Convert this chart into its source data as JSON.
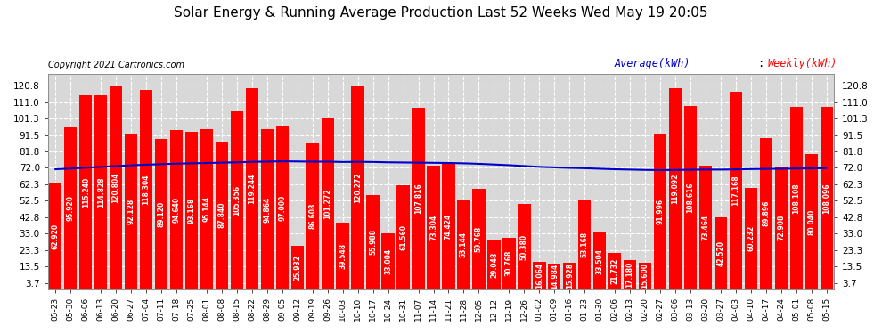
{
  "title": "Solar Energy & Running Average Production Last 52 Weeks Wed May 19 20:05",
  "copyright": "Copyright 2021 Cartronics.com",
  "legend_avg": "Average(kWh)",
  "legend_weekly": "Weekly(kWh)",
  "bar_color": "#ff0000",
  "avg_line_color": "#0000cd",
  "background_color": "#ffffff",
  "plot_bg_color": "#d8d8d8",
  "grid_color": "#ffffff",
  "yticks": [
    3.7,
    13.5,
    23.3,
    33.0,
    42.8,
    52.5,
    62.3,
    72.0,
    81.8,
    91.5,
    101.3,
    111.0,
    120.8
  ],
  "categories": [
    "05-23",
    "05-30",
    "06-06",
    "06-13",
    "06-20",
    "06-27",
    "07-04",
    "07-11",
    "07-18",
    "07-25",
    "08-01",
    "08-08",
    "08-15",
    "08-22",
    "08-29",
    "09-05",
    "09-12",
    "09-19",
    "09-26",
    "10-03",
    "10-10",
    "10-17",
    "10-24",
    "10-31",
    "11-07",
    "11-14",
    "11-21",
    "11-28",
    "12-05",
    "12-12",
    "12-19",
    "12-26",
    "01-02",
    "01-09",
    "01-16",
    "01-23",
    "01-30",
    "02-06",
    "02-13",
    "02-20",
    "02-27",
    "03-06",
    "03-13",
    "03-20",
    "03-27",
    "04-03",
    "04-10",
    "04-17",
    "04-24",
    "05-01",
    "05-08",
    "05-15"
  ],
  "weekly_values": [
    62.92,
    95.92,
    115.24,
    114.828,
    120.804,
    92.128,
    118.304,
    89.12,
    94.64,
    93.168,
    95.144,
    87.84,
    105.356,
    119.244,
    94.864,
    97.0,
    25.932,
    86.608,
    101.272,
    39.548,
    120.272,
    55.988,
    33.004,
    61.56,
    107.816,
    73.304,
    74.424,
    53.144,
    59.768,
    29.048,
    30.768,
    50.38,
    16.064,
    14.984,
    15.928,
    53.168,
    33.504,
    21.732,
    17.18,
    15.6,
    91.996,
    119.092,
    108.616,
    73.464,
    42.52,
    117.168,
    60.232,
    89.896,
    72.908,
    108.108,
    80.04,
    108.096
  ],
  "avg_values": [
    71.2,
    71.6,
    72.1,
    72.6,
    73.1,
    73.5,
    73.9,
    74.2,
    74.5,
    74.7,
    74.9,
    75.1,
    75.3,
    75.6,
    75.7,
    75.9,
    75.8,
    75.7,
    75.7,
    75.5,
    75.6,
    75.5,
    75.3,
    75.2,
    75.1,
    75.0,
    74.9,
    74.7,
    74.4,
    74.0,
    73.6,
    73.1,
    72.6,
    72.3,
    72.0,
    71.8,
    71.5,
    71.2,
    71.0,
    70.8,
    70.7,
    70.8,
    70.9,
    71.0,
    71.0,
    71.1,
    71.3,
    71.4,
    71.5,
    71.6,
    71.7,
    71.9
  ],
  "ylim_max": 128,
  "title_fontsize": 11,
  "tick_fontsize": 7.5,
  "label_fontsize": 5.5,
  "copyright_fontsize": 7
}
